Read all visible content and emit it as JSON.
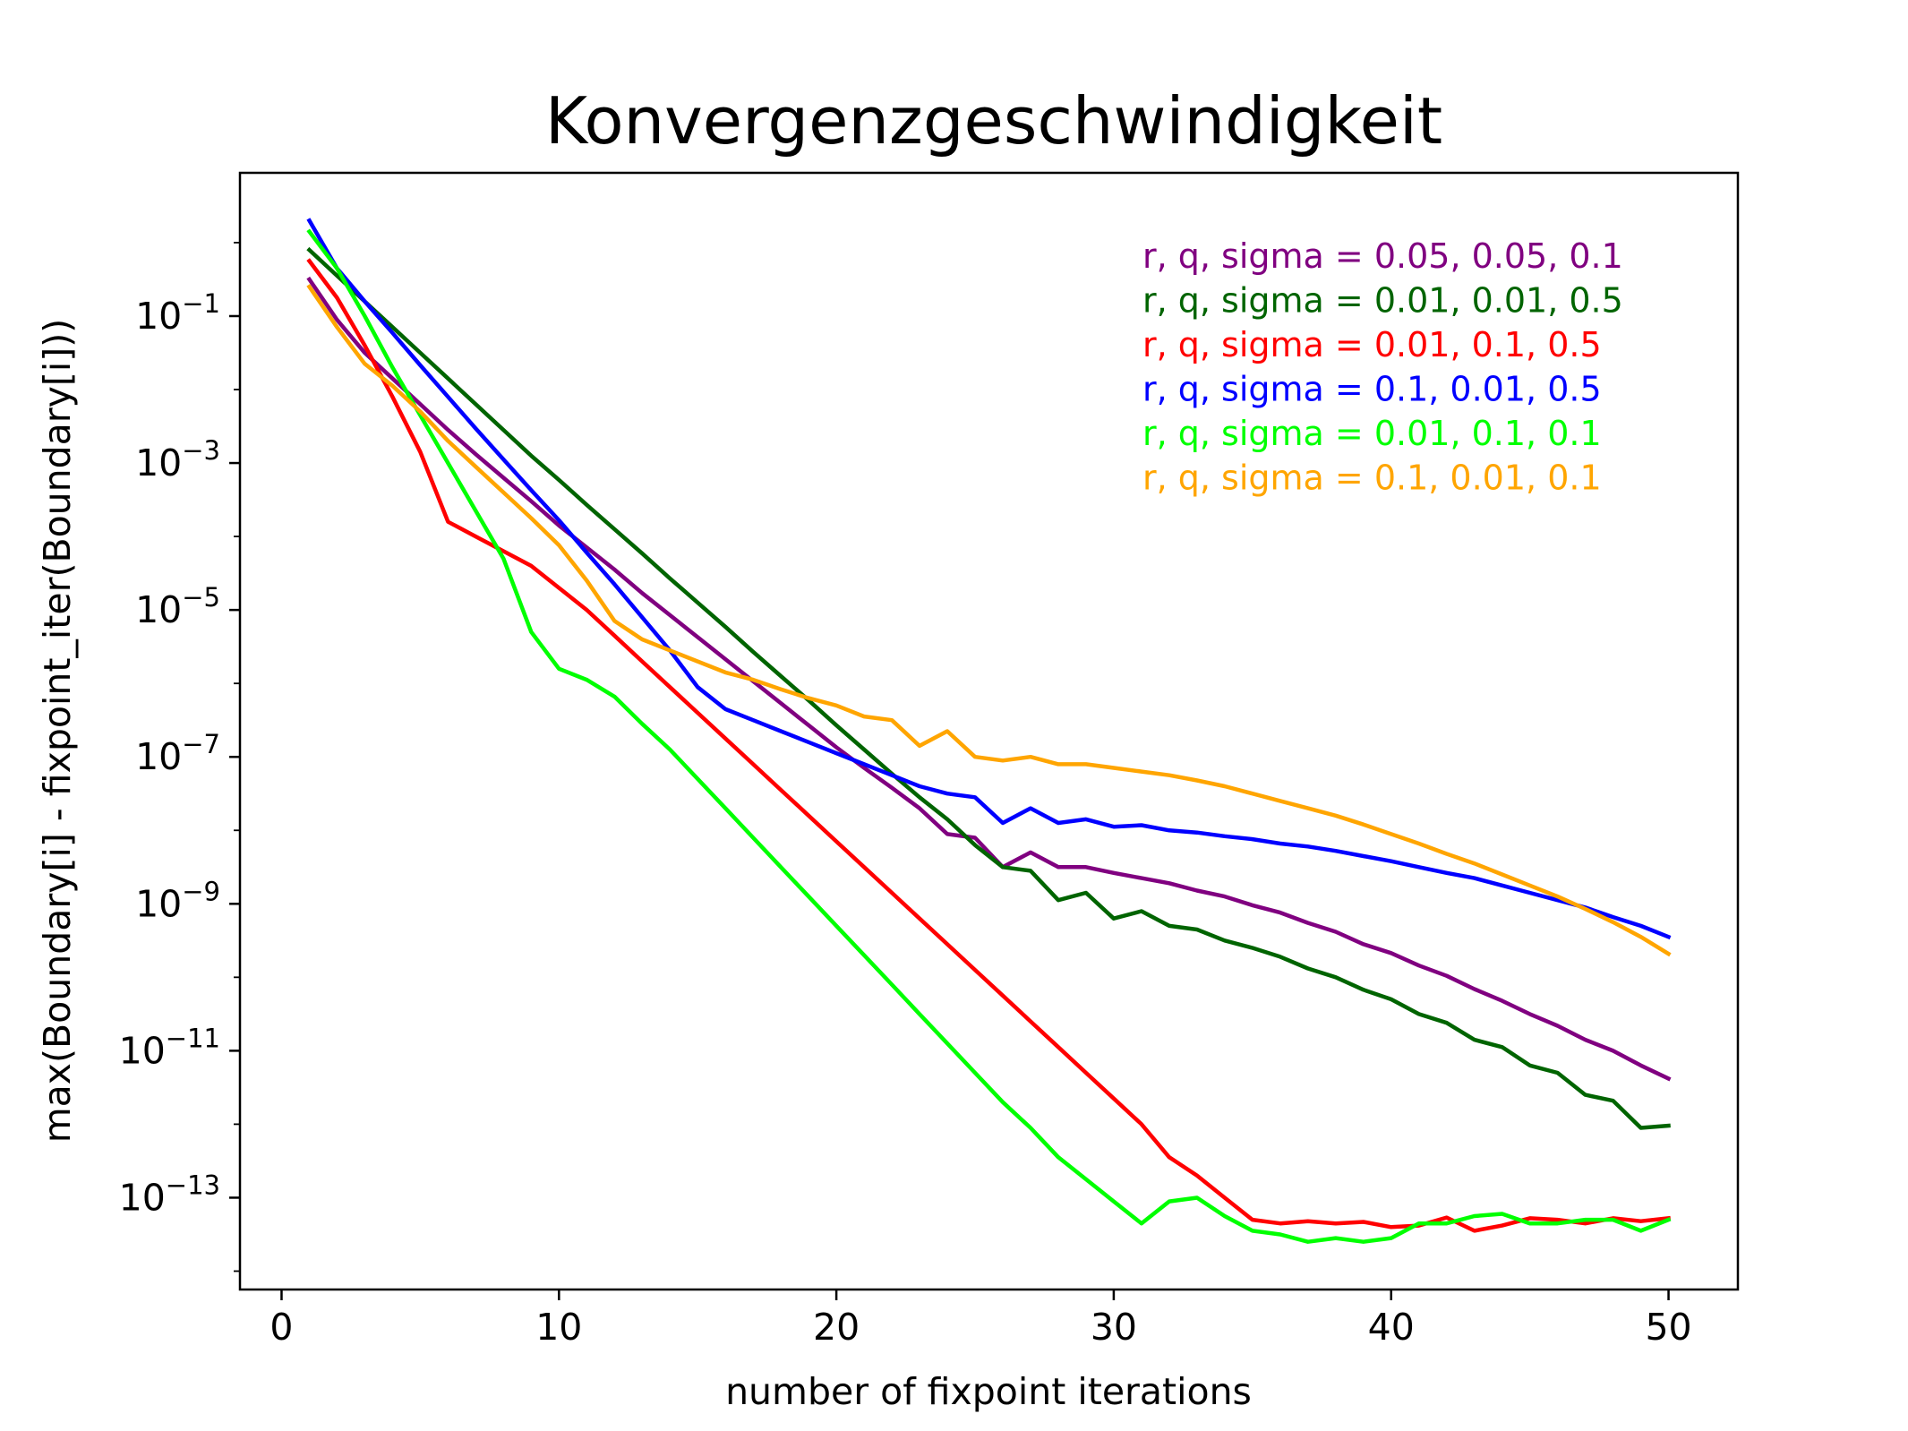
{
  "chart_data": {
    "type": "line",
    "title": "Konvergenzgeschwindigkeit",
    "xlabel": "number of fixpoint iterations",
    "ylabel": "max(Boundary[i] - fixpoint_iter(Boundary[i]))",
    "yscale": "log",
    "xlim": [
      -1.5,
      52.5
    ],
    "ylim_log10": [
      -14.25,
      0.95
    ],
    "x_ticks": [
      0,
      10,
      20,
      30,
      40,
      50
    ],
    "x_tick_labels": [
      "0",
      "10",
      "20",
      "30",
      "40",
      "50"
    ],
    "y_ticks_exp": [
      -1,
      -3,
      -5,
      -7,
      -9,
      -11,
      -13
    ],
    "y_tick_labels": [
      {
        "base": "10",
        "exp": "−1"
      },
      {
        "base": "10",
        "exp": "−3"
      },
      {
        "base": "10",
        "exp": "−5"
      },
      {
        "base": "10",
        "exp": "−7"
      },
      {
        "base": "10",
        "exp": "−9"
      },
      {
        "base": "10",
        "exp": "−11"
      },
      {
        "base": "10",
        "exp": "−13"
      }
    ],
    "grid": false,
    "legend_position": "top-right",
    "series": [
      {
        "name": "r, q, sigma = 0.05, 0.05, 0.1",
        "color": "#800080",
        "x": [
          1,
          2,
          3,
          4,
          5,
          6,
          7,
          8,
          9,
          10,
          11,
          12,
          13,
          14,
          15,
          16,
          17,
          18,
          19,
          20,
          21,
          22,
          23,
          24,
          25,
          26,
          27,
          28,
          29,
          30,
          31,
          32,
          33,
          34,
          35,
          36,
          37,
          38,
          39,
          40,
          41,
          42,
          43,
          44,
          45,
          46,
          47,
          48,
          49,
          50
        ],
        "log10_y": [
          -0.5,
          -1.05,
          -1.5,
          -1.85,
          -2.2,
          -2.55,
          -2.88,
          -3.2,
          -3.52,
          -3.85,
          -4.15,
          -4.45,
          -4.77,
          -5.07,
          -5.37,
          -5.67,
          -5.97,
          -6.27,
          -6.57,
          -6.87,
          -7.15,
          -7.42,
          -7.7,
          -8.05,
          -8.1,
          -8.5,
          -8.3,
          -8.5,
          -8.5,
          -8.58,
          -8.65,
          -8.72,
          -8.82,
          -8.9,
          -9.02,
          -9.12,
          -9.26,
          -9.38,
          -9.55,
          -9.67,
          -9.84,
          -9.98,
          -10.16,
          -10.32,
          -10.5,
          -10.66,
          -10.85,
          -11.0,
          -11.2,
          -11.38
        ]
      },
      {
        "name": "r, q, sigma = 0.01, 0.01, 0.5",
        "color": "#006400",
        "x": [
          1,
          2,
          3,
          4,
          5,
          6,
          7,
          8,
          9,
          10,
          11,
          12,
          13,
          14,
          15,
          16,
          17,
          18,
          19,
          20,
          21,
          22,
          23,
          24,
          25,
          26,
          27,
          28,
          29,
          30,
          31,
          32,
          33,
          34,
          35,
          36,
          37,
          38,
          39,
          40,
          41,
          42,
          43,
          44,
          45,
          46,
          47,
          48,
          49,
          50
        ],
        "log10_y": [
          -0.1,
          -0.45,
          -0.8,
          -1.15,
          -1.5,
          -1.85,
          -2.2,
          -2.55,
          -2.9,
          -3.23,
          -3.57,
          -3.9,
          -4.23,
          -4.57,
          -4.9,
          -5.23,
          -5.57,
          -5.9,
          -6.23,
          -6.57,
          -6.9,
          -7.23,
          -7.55,
          -7.85,
          -8.2,
          -8.5,
          -8.55,
          -8.95,
          -8.85,
          -9.2,
          -9.1,
          -9.3,
          -9.35,
          -9.5,
          -9.6,
          -9.72,
          -9.88,
          -10.0,
          -10.17,
          -10.3,
          -10.5,
          -10.62,
          -10.85,
          -10.95,
          -11.2,
          -11.3,
          -11.6,
          -11.68,
          -12.05,
          -12.02
        ]
      },
      {
        "name": "r, q, sigma = 0.01, 0.1, 0.5",
        "color": "#ff0000",
        "x": [
          1,
          2,
          3,
          4,
          5,
          6,
          7,
          8,
          9,
          10,
          11,
          12,
          13,
          14,
          15,
          16,
          17,
          18,
          19,
          20,
          21,
          22,
          23,
          24,
          25,
          26,
          27,
          28,
          29,
          30,
          31,
          32,
          33,
          34,
          35,
          36,
          37,
          38,
          39,
          40,
          41,
          42,
          43,
          44,
          45,
          46,
          47,
          48,
          49,
          50
        ],
        "log10_y": [
          -0.25,
          -0.75,
          -1.4,
          -2.1,
          -2.85,
          -3.8,
          -4.0,
          -4.2,
          -4.4,
          -4.7,
          -5.0,
          -5.35,
          -5.7,
          -6.05,
          -6.4,
          -6.75,
          -7.1,
          -7.45,
          -7.8,
          -8.15,
          -8.5,
          -8.85,
          -9.2,
          -9.55,
          -9.9,
          -10.25,
          -10.6,
          -10.95,
          -11.3,
          -11.65,
          -12.0,
          -12.45,
          -12.7,
          -13.0,
          -13.3,
          -13.35,
          -13.32,
          -13.35,
          -13.33,
          -13.4,
          -13.38,
          -13.27,
          -13.45,
          -13.38,
          -13.28,
          -13.3,
          -13.35,
          -13.28,
          -13.32,
          -13.28
        ]
      },
      {
        "name": "r, q, sigma = 0.1, 0.01, 0.5",
        "color": "#0000ff",
        "x": [
          1,
          2,
          3,
          4,
          5,
          6,
          7,
          8,
          9,
          10,
          11,
          12,
          13,
          14,
          15,
          16,
          17,
          18,
          19,
          20,
          21,
          22,
          23,
          24,
          25,
          26,
          27,
          28,
          29,
          30,
          31,
          32,
          33,
          34,
          35,
          36,
          37,
          38,
          39,
          40,
          41,
          42,
          43,
          44,
          45,
          46,
          47,
          48,
          49,
          50
        ],
        "log10_y": [
          0.3,
          -0.35,
          -0.8,
          -1.23,
          -1.67,
          -2.1,
          -2.53,
          -2.95,
          -3.37,
          -3.78,
          -4.22,
          -4.65,
          -5.1,
          -5.55,
          -6.05,
          -6.35,
          -6.5,
          -6.65,
          -6.8,
          -6.95,
          -7.1,
          -7.25,
          -7.4,
          -7.5,
          -7.55,
          -7.9,
          -7.7,
          -7.9,
          -7.85,
          -7.95,
          -7.93,
          -8.0,
          -8.03,
          -8.08,
          -8.12,
          -8.18,
          -8.22,
          -8.28,
          -8.35,
          -8.42,
          -8.5,
          -8.58,
          -8.65,
          -8.75,
          -8.85,
          -8.95,
          -9.05,
          -9.18,
          -9.3,
          -9.45
        ]
      },
      {
        "name": "r, q, sigma = 0.01, 0.1, 0.1",
        "color": "#00ff00",
        "x": [
          1,
          2,
          3,
          4,
          5,
          6,
          7,
          8,
          9,
          10,
          11,
          12,
          13,
          14,
          15,
          16,
          17,
          18,
          19,
          20,
          21,
          22,
          23,
          24,
          25,
          26,
          27,
          28,
          29,
          30,
          31,
          32,
          33,
          34,
          35,
          36,
          37,
          38,
          39,
          40,
          41,
          42,
          43,
          44,
          45,
          46,
          47,
          48,
          49,
          50
        ],
        "log10_y": [
          0.15,
          -0.35,
          -1.0,
          -1.7,
          -2.35,
          -3.0,
          -3.65,
          -4.3,
          -5.3,
          -5.8,
          -5.95,
          -6.18,
          -6.55,
          -6.9,
          -7.3,
          -7.7,
          -8.1,
          -8.5,
          -8.9,
          -9.3,
          -9.7,
          -10.1,
          -10.5,
          -10.9,
          -11.3,
          -11.7,
          -12.05,
          -12.45,
          -12.75,
          -13.05,
          -13.35,
          -13.05,
          -13.0,
          -13.25,
          -13.45,
          -13.5,
          -13.6,
          -13.55,
          -13.6,
          -13.55,
          -13.35,
          -13.35,
          -13.25,
          -13.22,
          -13.35,
          -13.35,
          -13.3,
          -13.3,
          -13.45,
          -13.3
        ]
      },
      {
        "name": "r, q, sigma = 0.1, 0.01, 0.1",
        "color": "#ffa500",
        "x": [
          1,
          2,
          3,
          4,
          5,
          6,
          7,
          8,
          9,
          10,
          11,
          12,
          13,
          14,
          15,
          16,
          17,
          18,
          19,
          20,
          21,
          22,
          23,
          24,
          25,
          26,
          27,
          28,
          29,
          30,
          31,
          32,
          33,
          34,
          35,
          36,
          37,
          38,
          39,
          40,
          41,
          42,
          43,
          44,
          45,
          46,
          47,
          48,
          49,
          50
        ],
        "log10_y": [
          -0.6,
          -1.15,
          -1.65,
          -1.95,
          -2.3,
          -2.7,
          -3.05,
          -3.4,
          -3.75,
          -4.12,
          -4.6,
          -5.15,
          -5.4,
          -5.55,
          -5.7,
          -5.85,
          -5.95,
          -6.08,
          -6.2,
          -6.3,
          -6.45,
          -6.5,
          -6.85,
          -6.65,
          -7.0,
          -7.05,
          -7.0,
          -7.1,
          -7.1,
          -7.15,
          -7.2,
          -7.25,
          -7.32,
          -7.4,
          -7.5,
          -7.6,
          -7.7,
          -7.8,
          -7.92,
          -8.05,
          -8.18,
          -8.32,
          -8.45,
          -8.6,
          -8.75,
          -8.9,
          -9.07,
          -9.25,
          -9.45,
          -9.68
        ]
      }
    ]
  }
}
